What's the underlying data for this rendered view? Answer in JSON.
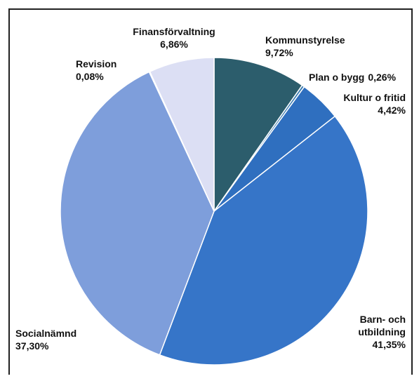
{
  "chart_data": {
    "type": "pie",
    "categories": [
      "Kommunstyrelse",
      "Plan o bygg",
      "Kultur o fritid",
      "Barn- och utbildning",
      "Socialnämnd",
      "Revision",
      "Finansförvaltning"
    ],
    "values": [
      9.72,
      0.26,
      4.42,
      41.35,
      37.3,
      0.08,
      6.86
    ],
    "value_labels": [
      "9,72%",
      "0,26%",
      "4,42%",
      "41,35%",
      "37,30%",
      "0,08%",
      "6,86%"
    ],
    "colors": [
      "#2c5d6c",
      "#3a7bb0",
      "#2f6fbf",
      "#3675c8",
      "#7e9edb",
      "#5b6fa3",
      "#dcdff4"
    ]
  }
}
